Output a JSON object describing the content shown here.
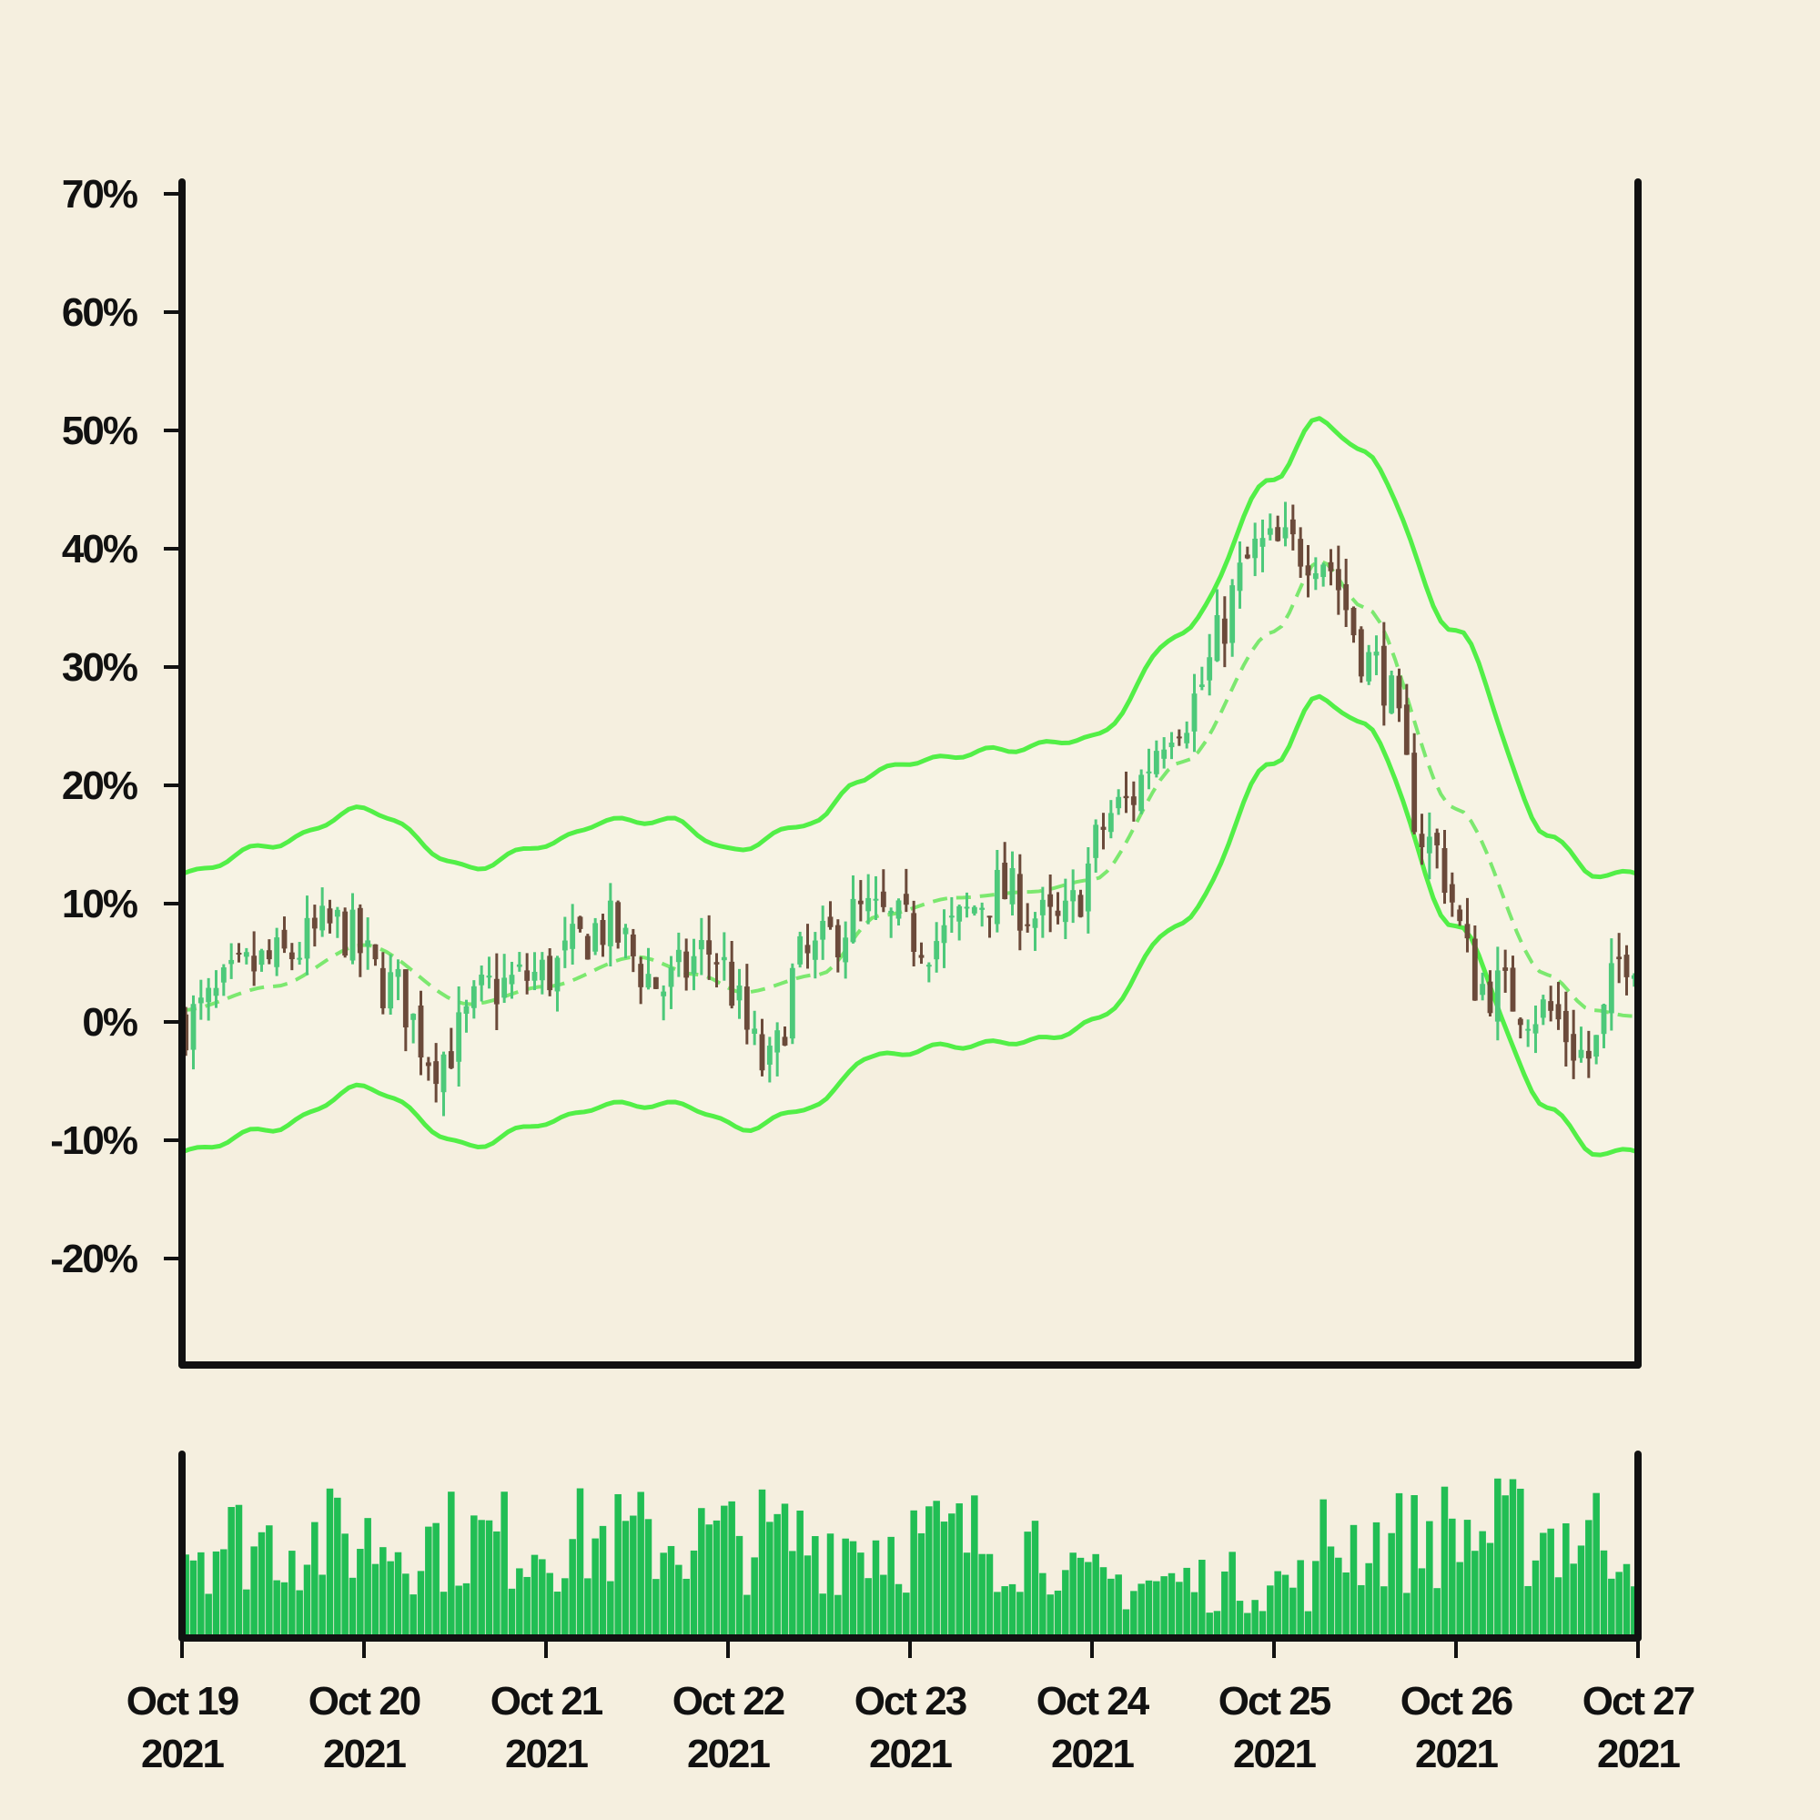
{
  "chart_data": {
    "type": "candlestick",
    "title": "",
    "xlabel": "",
    "ylabel": "",
    "y_format": "percent",
    "ylim": [
      -29,
      71
    ],
    "y_ticks": [
      70,
      60,
      50,
      40,
      30,
      20,
      10,
      0,
      -10,
      -20
    ],
    "y_tick_labels": [
      "70%",
      "60%",
      "50%",
      "40%",
      "30%",
      "20%",
      "10%",
      "0%",
      "-10%",
      "-20%"
    ],
    "x_range": [
      "2021-10-19",
      "2021-10-27"
    ],
    "x_ticks": [
      {
        "date": "2021-10-19",
        "line1": "Oct 19",
        "line2": "2021"
      },
      {
        "date": "2021-10-20",
        "line1": "Oct 20",
        "line2": "2021"
      },
      {
        "date": "2021-10-21",
        "line1": "Oct 21",
        "line2": "2021"
      },
      {
        "date": "2021-10-22",
        "line1": "Oct 22",
        "line2": "2021"
      },
      {
        "date": "2021-10-23",
        "line1": "Oct 23",
        "line2": "2021"
      },
      {
        "date": "2021-10-24",
        "line1": "Oct 24",
        "line2": "2021"
      },
      {
        "date": "2021-10-25",
        "line1": "Oct 25",
        "line2": "2021"
      },
      {
        "date": "2021-10-26",
        "line1": "Oct 26",
        "line2": "2021"
      },
      {
        "date": "2021-10-27",
        "line1": "Oct 27",
        "line2": "2021"
      }
    ],
    "grid": false,
    "legend": "none",
    "colors": {
      "background": "#f5efdf",
      "band_fill": "#f7f3e4",
      "up": "#4dc97a",
      "down": "#6b4a3a",
      "bands": "#52ef47",
      "middle_band": "#7ce86f",
      "volume": "#21be54",
      "axis": "#111111"
    },
    "candles": {
      "interval_hours": 1,
      "start": "2021-10-19T00:00",
      "count": 192,
      "close_path": [
        [
          "2021-10-19T00:00",
          0
        ],
        [
          "2021-10-19T12:00",
          5
        ],
        [
          "2021-10-19T21:00",
          8
        ],
        [
          "2021-10-20T04:00",
          3
        ],
        [
          "2021-10-20T10:00",
          -3
        ],
        [
          "2021-10-20T18:00",
          3
        ],
        [
          "2021-10-21T00:00",
          4
        ],
        [
          "2021-10-21T08:00",
          8
        ],
        [
          "2021-10-21T16:00",
          3
        ],
        [
          "2021-10-21T22:00",
          6
        ],
        [
          "2021-10-22T06:00",
          -4
        ],
        [
          "2021-10-22T10:00",
          5
        ],
        [
          "2021-10-22T18:00",
          9
        ],
        [
          "2021-10-23T04:00",
          7
        ],
        [
          "2021-10-23T12:00",
          11
        ],
        [
          "2021-10-23T20:00",
          8
        ],
        [
          "2021-10-24T04:00",
          18
        ],
        [
          "2021-10-24T12:00",
          26
        ],
        [
          "2021-10-24T23:00",
          40
        ],
        [
          "2021-10-25T06:00",
          40
        ],
        [
          "2021-10-25T14:00",
          30
        ],
        [
          "2021-10-25T21:00",
          15
        ],
        [
          "2021-10-26T04:00",
          3
        ],
        [
          "2021-10-26T12:00",
          1
        ],
        [
          "2021-10-26T18:00",
          -3
        ],
        [
          "2021-10-26T23:00",
          6
        ]
      ]
    },
    "bollinger_bands": {
      "upper": [
        [
          "2021-10-19T00:00",
          12.5
        ],
        [
          "2021-10-19T12:00",
          15
        ],
        [
          "2021-10-20T00:00",
          18
        ],
        [
          "2021-10-20T14:00",
          13
        ],
        [
          "2021-10-21T00:00",
          15
        ],
        [
          "2021-10-21T08:00",
          17
        ],
        [
          "2021-10-21T17:00",
          17
        ],
        [
          "2021-10-22T00:00",
          14.5
        ],
        [
          "2021-10-22T12:00",
          17
        ],
        [
          "2021-10-22T17:00",
          20.5
        ],
        [
          "2021-10-23T00:00",
          22
        ],
        [
          "2021-10-23T12:00",
          23
        ],
        [
          "2021-10-24T00:00",
          24
        ],
        [
          "2021-10-24T12:00",
          33
        ],
        [
          "2021-10-25T00:00",
          46
        ],
        [
          "2021-10-25T06:00",
          51
        ],
        [
          "2021-10-25T12:00",
          48
        ],
        [
          "2021-10-26T00:00",
          33
        ],
        [
          "2021-10-26T12:00",
          16
        ],
        [
          "2021-10-26T18:00",
          12.5
        ],
        [
          "2021-10-26T23:00",
          12.5
        ]
      ],
      "middle": [
        [
          "2021-10-19T00:00",
          1
        ],
        [
          "2021-10-19T12:00",
          3
        ],
        [
          "2021-10-20T00:00",
          6.5
        ],
        [
          "2021-10-20T14:00",
          1.5
        ],
        [
          "2021-10-21T00:00",
          3
        ],
        [
          "2021-10-21T12:00",
          5.5
        ],
        [
          "2021-10-21T20:00",
          4
        ],
        [
          "2021-10-22T02:00",
          2.5
        ],
        [
          "2021-10-22T12:00",
          4
        ],
        [
          "2021-10-22T20:00",
          9
        ],
        [
          "2021-10-23T06:00",
          10.5
        ],
        [
          "2021-10-23T16:00",
          11
        ],
        [
          "2021-10-24T00:00",
          12
        ],
        [
          "2021-10-24T12:00",
          22
        ],
        [
          "2021-10-25T00:00",
          33
        ],
        [
          "2021-10-25T06:00",
          39
        ],
        [
          "2021-10-25T12:00",
          35
        ],
        [
          "2021-10-26T00:00",
          18
        ],
        [
          "2021-10-26T12:00",
          4
        ],
        [
          "2021-10-26T18:00",
          1
        ],
        [
          "2021-10-26T23:00",
          0.5
        ]
      ],
      "lower": [
        [
          "2021-10-19T00:00",
          -11
        ],
        [
          "2021-10-19T12:00",
          -9
        ],
        [
          "2021-10-20T00:00",
          -5.5
        ],
        [
          "2021-10-20T14:00",
          -10.5
        ],
        [
          "2021-10-21T00:00",
          -8.5
        ],
        [
          "2021-10-21T08:00",
          -7
        ],
        [
          "2021-10-21T18:00",
          -7
        ],
        [
          "2021-10-22T02:00",
          -9
        ],
        [
          "2021-10-22T12:00",
          -7
        ],
        [
          "2021-10-22T18:00",
          -3
        ],
        [
          "2021-10-23T06:00",
          -2
        ],
        [
          "2021-10-23T18:00",
          -1.5
        ],
        [
          "2021-10-24T00:00",
          0
        ],
        [
          "2021-10-24T12:00",
          8.5
        ],
        [
          "2021-10-25T00:00",
          22
        ],
        [
          "2021-10-25T06:00",
          27.5
        ],
        [
          "2021-10-25T12:00",
          25
        ],
        [
          "2021-10-26T00:00",
          8
        ],
        [
          "2021-10-26T12:00",
          -7
        ],
        [
          "2021-10-26T18:00",
          -11
        ],
        [
          "2021-10-26T23:00",
          -11
        ]
      ]
    },
    "volume": {
      "interval_hours": 1,
      "count": 192,
      "pattern": "random heights between about 5% and 100% of panel, higher near start, lower around Oct 24-25, higher again at the end"
    }
  }
}
